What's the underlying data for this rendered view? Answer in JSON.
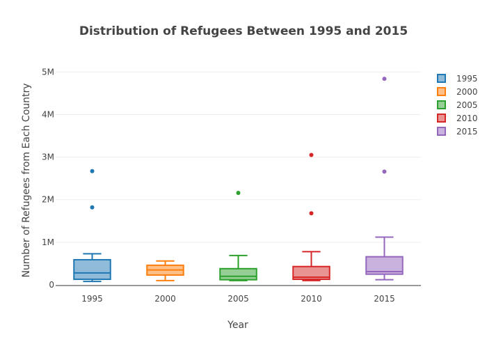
{
  "chart_data": {
    "type": "box",
    "title": "Distribution of Refugees Between 1995 and 2015",
    "xlabel": "Year",
    "ylabel": "Number of Refugees from Each Country",
    "ylim": [
      0,
      5300000
    ],
    "yticks": [
      {
        "value": 0,
        "label": "0"
      },
      {
        "value": 1000000,
        "label": "1M"
      },
      {
        "value": 2000000,
        "label": "2M"
      },
      {
        "value": 3000000,
        "label": "3M"
      },
      {
        "value": 4000000,
        "label": "4M"
      },
      {
        "value": 5000000,
        "label": "5M"
      }
    ],
    "grid": true,
    "legend_position": "top-right",
    "categories": [
      "1995",
      "2000",
      "2005",
      "2010",
      "2015"
    ],
    "series": [
      {
        "name": "1995",
        "color": "#1f77b4",
        "fill": "rgba(31,119,180,0.5)",
        "lowerfence": 80000,
        "q1": 130000,
        "median": 280000,
        "q3": 590000,
        "upperfence": 730000,
        "outliers": [
          1820000,
          2670000
        ]
      },
      {
        "name": "2000",
        "color": "#ff7f0e",
        "fill": "rgba(255,127,14,0.5)",
        "lowerfence": 100000,
        "q1": 230000,
        "median": 350000,
        "q3": 460000,
        "upperfence": 560000,
        "outliers": []
      },
      {
        "name": "2005",
        "color": "#2ca02c",
        "fill": "rgba(44,160,44,0.5)",
        "lowerfence": 100000,
        "q1": 120000,
        "median": 200000,
        "q3": 380000,
        "upperfence": 690000,
        "outliers": [
          2160000
        ]
      },
      {
        "name": "2010",
        "color": "#d62728",
        "fill": "rgba(214,39,40,0.5)",
        "lowerfence": 100000,
        "q1": 130000,
        "median": 180000,
        "q3": 430000,
        "upperfence": 780000,
        "outliers": [
          1680000,
          3050000
        ]
      },
      {
        "name": "2015",
        "color": "#9467bd",
        "fill": "rgba(148,103,189,0.5)",
        "lowerfence": 120000,
        "q1": 250000,
        "median": 310000,
        "q3": 660000,
        "upperfence": 1120000,
        "outliers": [
          2660000,
          4840000
        ]
      }
    ]
  }
}
